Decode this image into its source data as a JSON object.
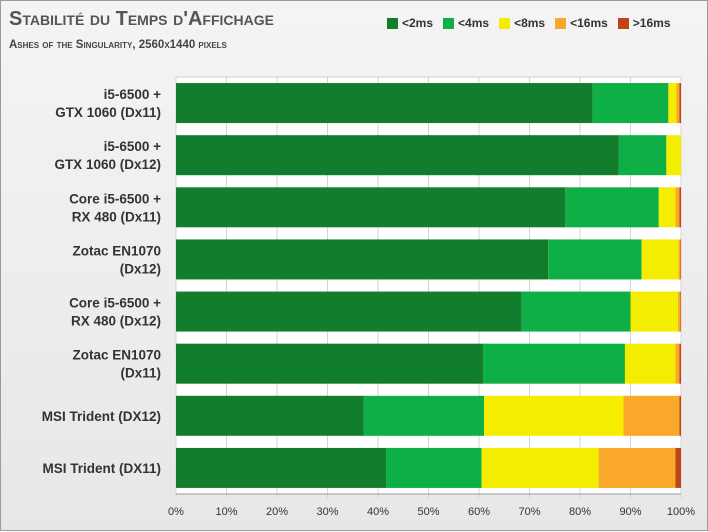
{
  "chart_data": {
    "type": "bar",
    "orientation": "horizontal",
    "stacked": true,
    "title": "Stabilité du Temps d'Affichage",
    "subtitle": "Ashes of the Singularity, 2560x1440 pixels",
    "xlabel": "",
    "ylabel": "",
    "xlim": [
      0,
      100
    ],
    "x_ticks": [
      "0%",
      "10%",
      "20%",
      "30%",
      "40%",
      "50%",
      "60%",
      "70%",
      "80%",
      "90%",
      "100%"
    ],
    "grid": true,
    "legend_position": "top-right",
    "categories": [
      [
        "i5-6500 +",
        "GTX 1060 (Dx11)"
      ],
      [
        "i5-6500 +",
        "GTX 1060 (Dx12)"
      ],
      [
        "Core i5-6500 +",
        "RX 480 (Dx11)"
      ],
      [
        "Zotac EN1070",
        "(Dx12)"
      ],
      [
        "Core i5-6500 +",
        "RX 480 (Dx12)"
      ],
      [
        "Zotac EN1070",
        "(Dx11)"
      ],
      [
        "MSI Trident (DX12)"
      ],
      [
        "MSI Trident (DX11)"
      ]
    ],
    "series": [
      {
        "name": "<2ms",
        "color": "#127d2d",
        "values": [
          82.5,
          87.7,
          77.1,
          73.7,
          68.4,
          60.8,
          37.2,
          41.6
        ]
      },
      {
        "name": "<4ms",
        "color": "#0daf46",
        "values": [
          15.0,
          9.4,
          18.5,
          18.5,
          21.6,
          28.1,
          23.8,
          18.9
        ]
      },
      {
        "name": "<8ms",
        "color": "#f5ed00",
        "values": [
          1.6,
          2.9,
          3.3,
          7.3,
          9.4,
          10.0,
          27.6,
          23.2
        ]
      },
      {
        "name": "<16ms",
        "color": "#faa82a",
        "values": [
          0.6,
          0.0,
          0.8,
          0.4,
          0.5,
          0.8,
          11.1,
          15.2
        ]
      },
      {
        "name": ">16ms",
        "color": "#c0431a",
        "values": [
          0.3,
          0.0,
          0.3,
          0.1,
          0.1,
          0.3,
          0.3,
          1.1
        ]
      }
    ]
  }
}
